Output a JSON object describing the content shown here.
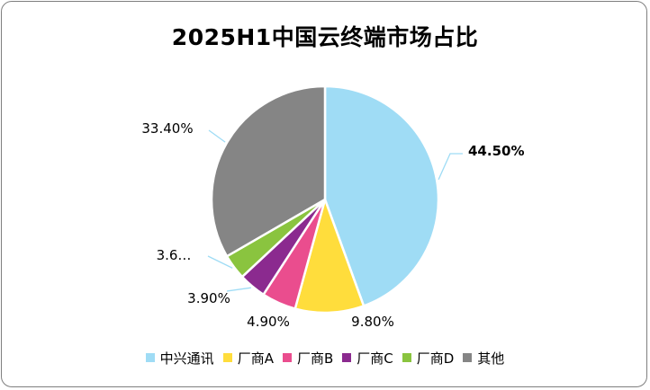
{
  "chart_data": {
    "type": "pie",
    "title": "2025H1中国云终端市场占比",
    "categories": [
      "中兴通讯",
      "厂商A",
      "厂商B",
      "厂商C",
      "厂商D",
      "其他"
    ],
    "values": [
      44.5,
      9.8,
      4.9,
      3.9,
      3.6,
      33.4
    ],
    "data_labels": [
      "44.50%",
      "9.80%",
      "4.90%",
      "3.90%",
      "3.6…",
      "33.40%"
    ],
    "colors": [
      "#9fdcf5",
      "#ffdd3c",
      "#ea4d8e",
      "#8b2a8f",
      "#8ac43f",
      "#858585"
    ],
    "legend_position": "bottom",
    "start_angle_deg": 0,
    "direction": "clockwise",
    "highlighted_label_index": 0
  }
}
